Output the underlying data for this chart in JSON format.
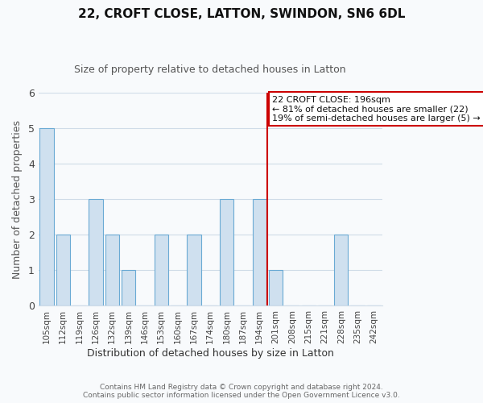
{
  "title": "22, CROFT CLOSE, LATTON, SWINDON, SN6 6DL",
  "subtitle": "Size of property relative to detached houses in Latton",
  "xlabel": "Distribution of detached houses by size in Latton",
  "ylabel": "Number of detached properties",
  "bar_labels": [
    "105sqm",
    "112sqm",
    "119sqm",
    "126sqm",
    "132sqm",
    "139sqm",
    "146sqm",
    "153sqm",
    "160sqm",
    "167sqm",
    "174sqm",
    "180sqm",
    "187sqm",
    "194sqm",
    "201sqm",
    "208sqm",
    "215sqm",
    "221sqm",
    "228sqm",
    "235sqm",
    "242sqm"
  ],
  "bar_values": [
    5,
    2,
    0,
    3,
    2,
    1,
    0,
    2,
    0,
    2,
    0,
    3,
    0,
    3,
    1,
    0,
    0,
    0,
    2,
    0,
    0
  ],
  "bar_color": "#cfe0ef",
  "bar_edge_color": "#6aaad4",
  "background_color": "#f8fafc",
  "grid_color": "#d0dce8",
  "vline_x_index": 13,
  "vline_color": "#cc0000",
  "annotation_title": "22 CROFT CLOSE: 196sqm",
  "annotation_line1": "← 81% of detached houses are smaller (22)",
  "annotation_line2": "19% of semi-detached houses are larger (5) →",
  "annotation_box_color": "#ffffff",
  "annotation_box_edge": "#cc0000",
  "footer_line1": "Contains HM Land Registry data © Crown copyright and database right 2024.",
  "footer_line2": "Contains public sector information licensed under the Open Government Licence v3.0.",
  "ylim": [
    0,
    6
  ],
  "yticks": [
    0,
    1,
    2,
    3,
    4,
    5,
    6
  ]
}
